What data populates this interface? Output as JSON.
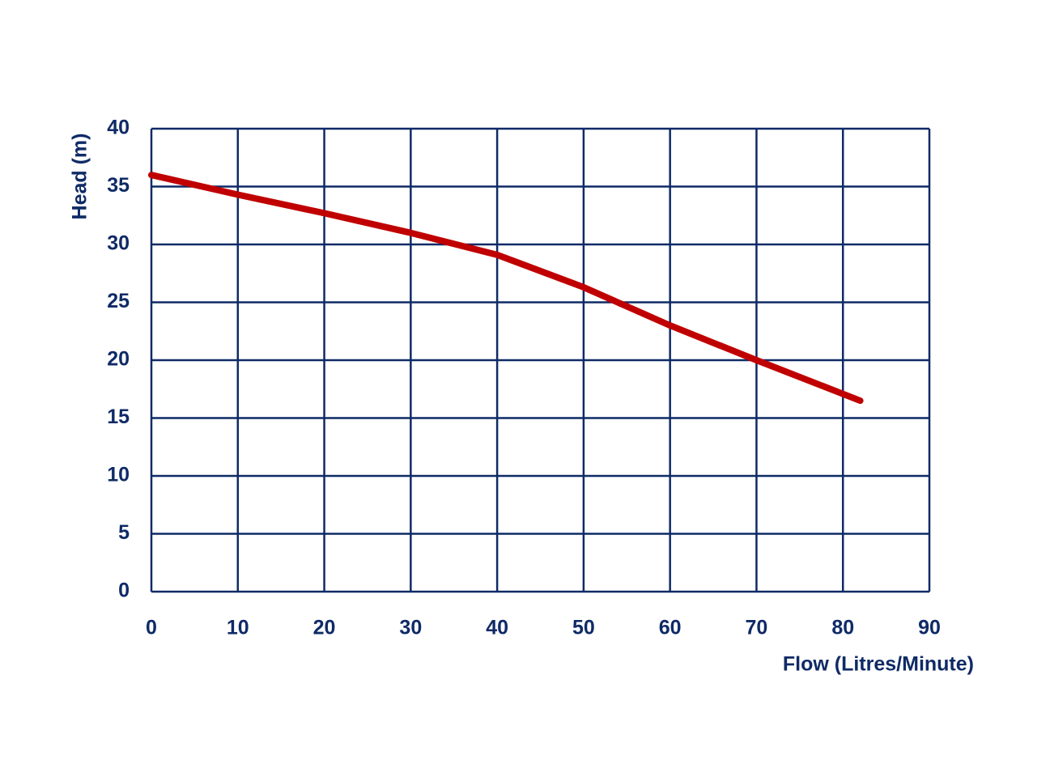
{
  "chart_data": {
    "type": "line",
    "x": [
      0,
      10,
      20,
      30,
      40,
      50,
      60,
      70,
      82
    ],
    "values": [
      36,
      34.3,
      32.7,
      31,
      29.1,
      26.3,
      23,
      20,
      16.5
    ],
    "color": "#c00000",
    "axis_color": "#0f2a66",
    "xlabel": "Flow (Litres/Minute)",
    "ylabel": "Head (m)",
    "xlim": [
      0,
      90
    ],
    "ylim": [
      0,
      40
    ],
    "xticks": [
      0,
      10,
      20,
      30,
      40,
      50,
      60,
      70,
      80,
      90
    ],
    "yticks": [
      0,
      5,
      10,
      15,
      20,
      25,
      30,
      35,
      40
    ],
    "grid": true
  }
}
